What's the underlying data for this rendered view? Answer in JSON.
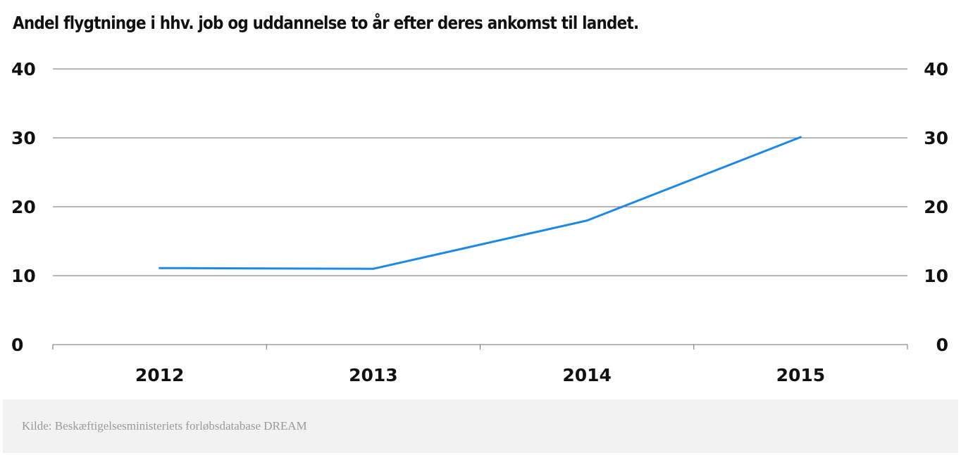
{
  "chart_data": {
    "type": "line",
    "title": "Andel flygtninge i hhv. job og uddannelse to år efter deres ankomst til landet.",
    "categories": [
      "2012",
      "2013",
      "2014",
      "2015"
    ],
    "series": [
      {
        "values": [
          11.1,
          11.0,
          18.0,
          30.1
        ],
        "color": "#1e88e5"
      }
    ],
    "y_ticks": [
      "0",
      "10",
      "20",
      "30",
      "40"
    ],
    "ylim": [
      0,
      40
    ],
    "y_axis_sides": [
      "left",
      "right"
    ],
    "grid": true,
    "legend": "none"
  },
  "footer": {
    "source": "Kilde: Beskæftigelsesministeriets forløbsdatabase DREAM"
  }
}
